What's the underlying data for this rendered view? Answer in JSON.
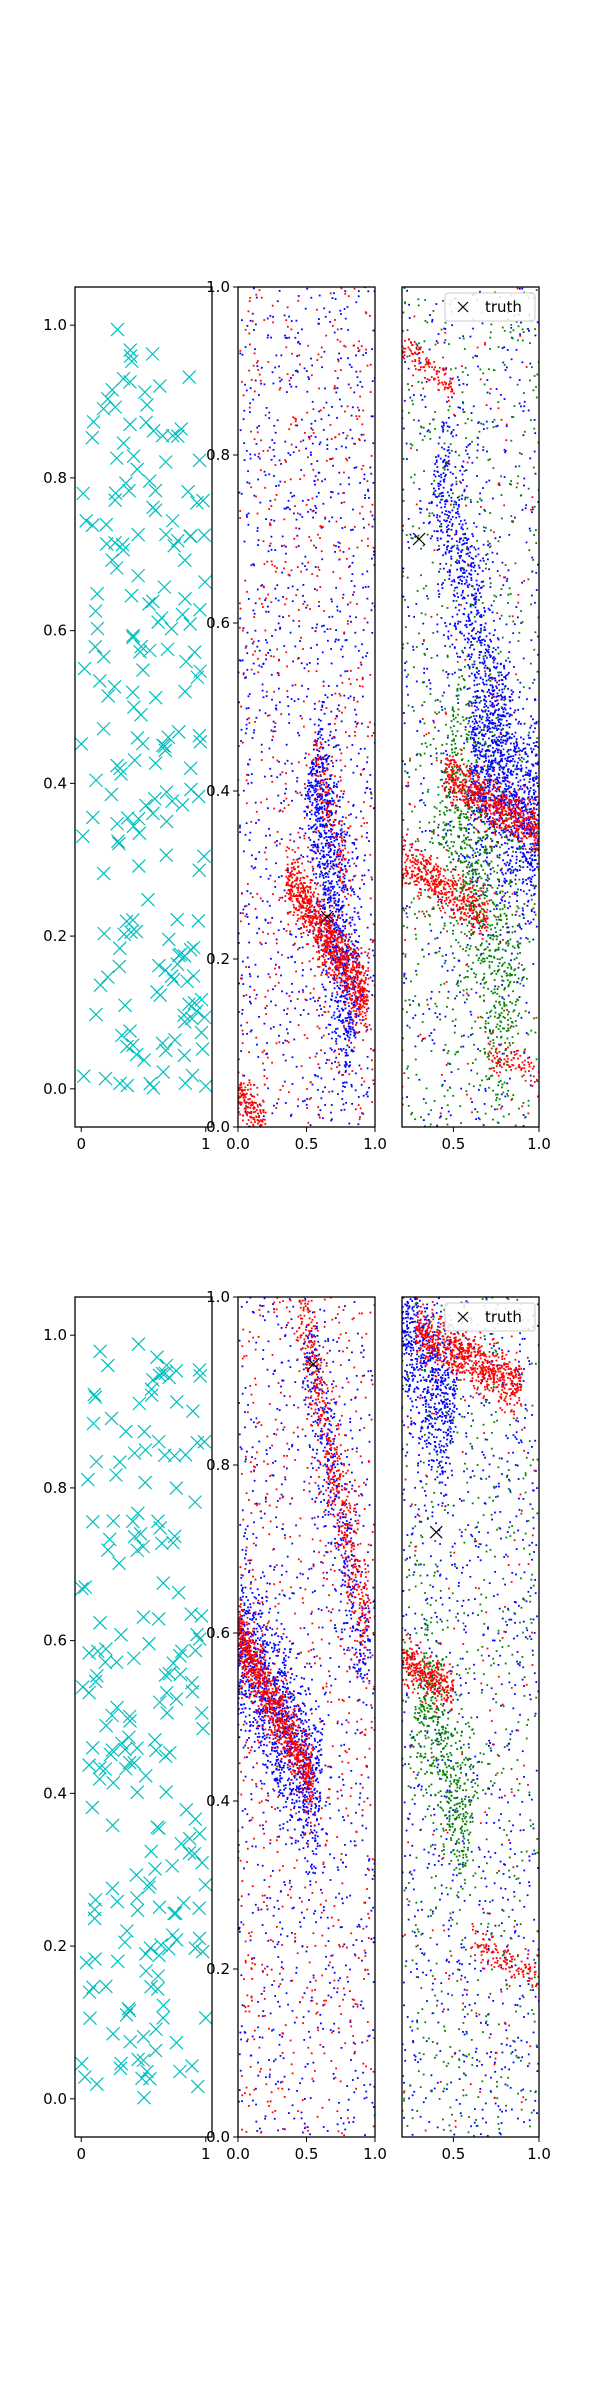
{
  "figure": {
    "legend_label": "truth",
    "colors": {
      "cyan": "#00bfbf",
      "red": "#ff0000",
      "blue": "#0000ff",
      "green": "#008000",
      "black": "#000000"
    }
  },
  "chart_data": [
    {
      "type": "scatter",
      "panel": "row1-left",
      "marker": "x",
      "color": "#00bfbf",
      "xlim": [
        -0.05,
        1.05
      ],
      "ylim": [
        -0.05,
        1.05
      ],
      "x_ticks": [
        "0",
        "1"
      ],
      "y_ticks": [
        "0.0",
        "0.2",
        "0.4",
        "0.6",
        "0.8",
        "1.0"
      ],
      "grid": false,
      "points": {
        "distribution": "uniform",
        "count": 200
      }
    },
    {
      "type": "scatter",
      "panel": "row1-middle",
      "marker": "dot",
      "xlim": [
        0.0,
        1.0
      ],
      "ylim": [
        0.0,
        1.0
      ],
      "x_ticks": [
        "0.0",
        "0.5",
        "1.0"
      ],
      "y_ticks": [
        "0.0",
        "0.2",
        "0.4",
        "0.6",
        "0.8",
        "1.0"
      ],
      "grid": false,
      "series": [
        {
          "color": "#0000ff",
          "clusters": [
            {
              "from": [
                0.55,
                0.45
              ],
              "to": [
                0.85,
                0.1
              ],
              "width": 0.06,
              "count": 1100
            },
            {
              "uniform": true,
              "count": 1000
            }
          ]
        },
        {
          "color": "#ff0000",
          "clusters": [
            {
              "from": [
                0.35,
                0.3
              ],
              "to": [
                0.95,
                0.15
              ],
              "width": 0.02,
              "count": 900
            },
            {
              "from": [
                0.0,
                0.04
              ],
              "to": [
                0.2,
                0.0
              ],
              "width": 0.015,
              "count": 180
            },
            {
              "from": [
                0.55,
                0.45
              ],
              "to": [
                0.8,
                0.3
              ],
              "width": 0.02,
              "count": 120
            },
            {
              "uniform": true,
              "count": 650
            }
          ]
        }
      ],
      "truth": {
        "x": 0.65,
        "y": 0.25
      }
    },
    {
      "type": "scatter",
      "panel": "row1-right",
      "marker": "dot",
      "xlim": [
        0.2,
        1.0
      ],
      "ylim": [
        0.0,
        1.0
      ],
      "x_ticks": [
        "0.5",
        "1.0"
      ],
      "grid": false,
      "legend": {
        "entries": [
          "truth"
        ],
        "placement": "upper right"
      },
      "series": [
        {
          "color": "#0000ff",
          "clusters": [
            {
              "from": [
                0.6,
                0.45
              ],
              "to": [
                1.0,
                0.35
              ],
              "width": 0.06,
              "count": 1200
            },
            {
              "from": [
                0.4,
                0.8
              ],
              "to": [
                0.8,
                0.45
              ],
              "width": 0.05,
              "count": 700
            },
            {
              "uniform": true,
              "count": 600
            }
          ]
        },
        {
          "color": "#008000",
          "clusters": [
            {
              "from": [
                0.45,
                0.45
              ],
              "to": [
                0.85,
                0.1
              ],
              "width": 0.08,
              "count": 800
            },
            {
              "uniform": true,
              "count": 700
            }
          ]
        },
        {
          "color": "#ff0000",
          "clusters": [
            {
              "from": [
                0.45,
                0.42
              ],
              "to": [
                1.0,
                0.35
              ],
              "width": 0.015,
              "count": 600
            },
            {
              "from": [
                0.2,
                0.32
              ],
              "to": [
                0.7,
                0.25
              ],
              "width": 0.015,
              "count": 450
            },
            {
              "from": [
                0.2,
                0.93
              ],
              "to": [
                0.5,
                0.88
              ],
              "width": 0.01,
              "count": 120
            },
            {
              "from": [
                0.7,
                0.09
              ],
              "to": [
                1.0,
                0.06
              ],
              "width": 0.01,
              "count": 90
            },
            {
              "uniform": true,
              "count": 150
            }
          ]
        }
      ],
      "truth": {
        "x": 0.3,
        "y": 0.7
      }
    },
    {
      "type": "scatter",
      "panel": "row2-left",
      "marker": "x",
      "color": "#00bfbf",
      "xlim": [
        -0.05,
        1.05
      ],
      "ylim": [
        -0.05,
        1.05
      ],
      "x_ticks": [
        "0",
        "1"
      ],
      "y_ticks": [
        "0.0",
        "0.2",
        "0.4",
        "0.6",
        "0.8",
        "1.0"
      ],
      "grid": false,
      "points": {
        "distribution": "uniform",
        "count": 200
      }
    },
    {
      "type": "scatter",
      "panel": "row2-middle",
      "marker": "dot",
      "xlim": [
        0.0,
        1.0
      ],
      "ylim": [
        0.0,
        1.0
      ],
      "x_ticks": [
        "0.0",
        "0.5",
        "1.0"
      ],
      "y_ticks": [
        "0.0",
        "0.2",
        "0.4",
        "0.6",
        "0.8",
        "1.0"
      ],
      "grid": false,
      "series": [
        {
          "color": "#0000ff",
          "clusters": [
            {
              "from": [
                0.0,
                0.6
              ],
              "to": [
                0.6,
                0.4
              ],
              "width": 0.05,
              "count": 1200
            },
            {
              "from": [
                0.5,
                0.95
              ],
              "to": [
                0.95,
                0.55
              ],
              "width": 0.04,
              "count": 400
            },
            {
              "uniform": true,
              "count": 800
            }
          ]
        },
        {
          "color": "#ff0000",
          "clusters": [
            {
              "from": [
                0.0,
                0.6
              ],
              "to": [
                0.55,
                0.42
              ],
              "width": 0.02,
              "count": 900
            },
            {
              "from": [
                0.45,
                1.0
              ],
              "to": [
                0.95,
                0.6
              ],
              "width": 0.03,
              "count": 500
            },
            {
              "uniform": true,
              "count": 700
            }
          ]
        }
      ],
      "truth": {
        "x": 0.55,
        "y": 0.92
      }
    },
    {
      "type": "scatter",
      "panel": "row2-right",
      "marker": "dot",
      "xlim": [
        0.2,
        1.0
      ],
      "ylim": [
        0.0,
        1.0
      ],
      "x_ticks": [
        "0.5",
        "1.0"
      ],
      "grid": false,
      "legend": {
        "entries": [
          "truth"
        ],
        "placement": "upper right"
      },
      "series": [
        {
          "color": "#0000ff",
          "clusters": [
            {
              "from": [
                0.2,
                0.98
              ],
              "to": [
                0.5,
                0.85
              ],
              "width": 0.05,
              "count": 700
            },
            {
              "uniform": true,
              "count": 900
            }
          ]
        },
        {
          "color": "#008000",
          "clusters": [
            {
              "from": [
                0.3,
                0.55
              ],
              "to": [
                0.6,
                0.35
              ],
              "width": 0.05,
              "count": 500
            },
            {
              "uniform": true,
              "count": 600
            }
          ]
        },
        {
          "color": "#ff0000",
          "clusters": [
            {
              "from": [
                0.28,
                0.96
              ],
              "to": [
                0.9,
                0.89
              ],
              "width": 0.015,
              "count": 700
            },
            {
              "from": [
                0.2,
                0.57
              ],
              "to": [
                0.5,
                0.53
              ],
              "width": 0.012,
              "count": 300
            },
            {
              "from": [
                0.6,
                0.23
              ],
              "to": [
                1.0,
                0.19
              ],
              "width": 0.01,
              "count": 120
            },
            {
              "uniform": true,
              "count": 150
            }
          ]
        }
      ],
      "truth": {
        "x": 0.4,
        "y": 0.72
      }
    }
  ]
}
